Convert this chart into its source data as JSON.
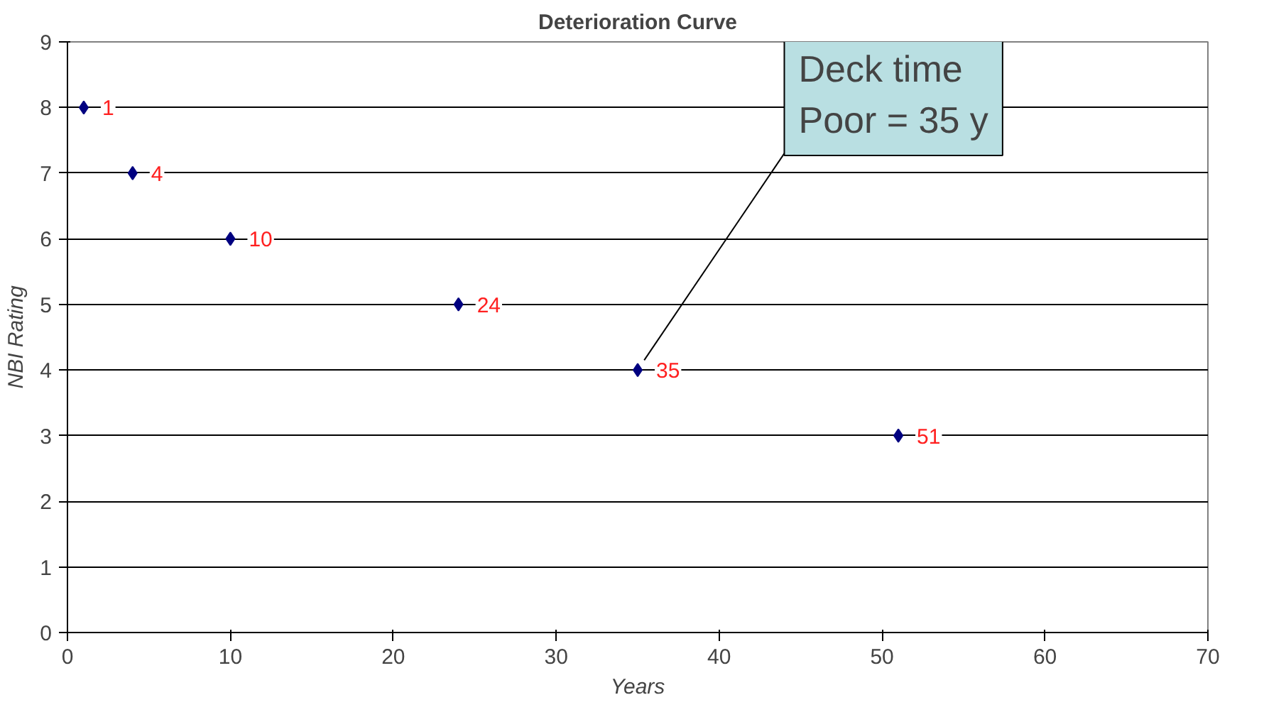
{
  "chart_data": {
    "type": "scatter",
    "title": "Deterioration Curve",
    "xlabel": "Years",
    "ylabel": "NBI Rating",
    "x": [
      1,
      4,
      10,
      24,
      35,
      51
    ],
    "series": [
      {
        "color": "#000080",
        "values": [
          8,
          7,
          6,
          5,
          4,
          3
        ]
      }
    ],
    "xlim": [
      0,
      70
    ],
    "xticks": [
      0,
      10,
      20,
      30,
      40,
      50,
      60,
      70
    ],
    "ylim": [
      0,
      9
    ],
    "yticks": [
      0,
      1,
      2,
      3,
      4,
      5,
      6,
      7,
      8,
      9
    ],
    "grid": "y",
    "marker": "diamond",
    "annotations": [
      {
        "text": "1",
        "x": 1,
        "y": 8
      },
      {
        "text": "4",
        "x": 4,
        "y": 7
      },
      {
        "text": "10",
        "x": 10,
        "y": 6
      },
      {
        "text": "24",
        "x": 24,
        "y": 5
      },
      {
        "text": "35",
        "x": 35,
        "y": 4
      },
      {
        "text": "51",
        "x": 51,
        "y": 3
      },
      {
        "text": "Deck time\nPoor = 35 y",
        "x": 35,
        "y": 4
      }
    ]
  }
}
